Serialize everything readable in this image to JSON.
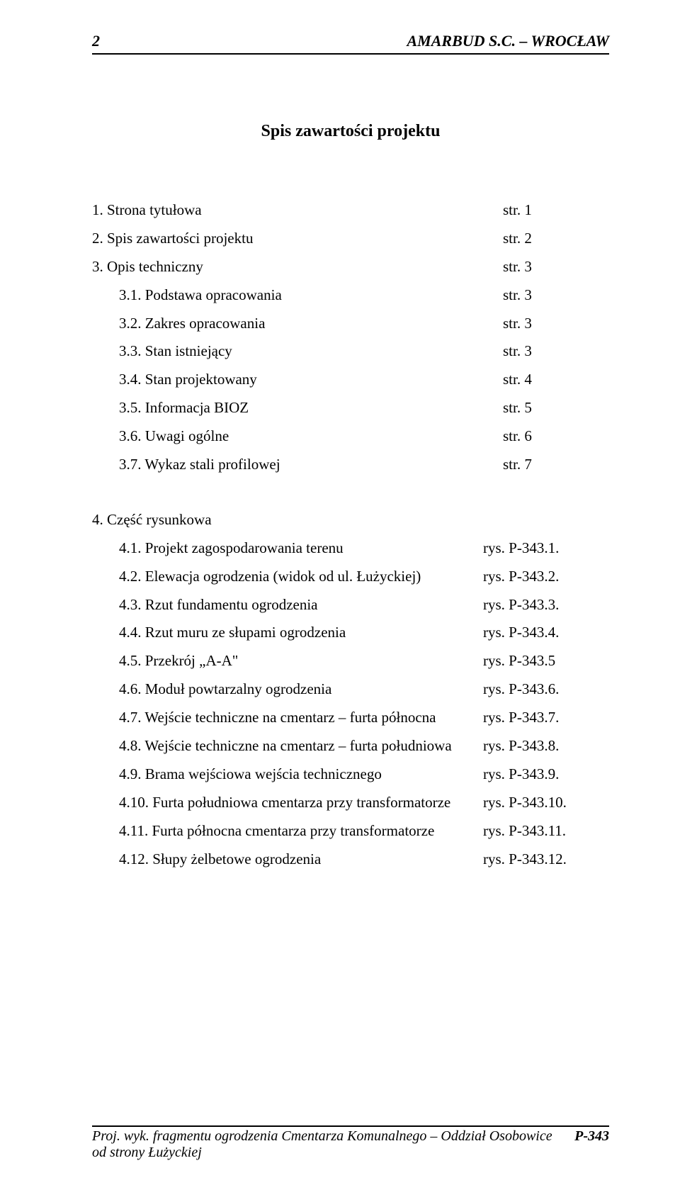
{
  "header": {
    "page_number": "2",
    "company": "AMARBUD S.C. – WROCŁAW"
  },
  "title": "Spis zawartości projektu",
  "section1": [
    {
      "label": "1. Strona tytułowa",
      "page": "str. 1"
    },
    {
      "label": "2. Spis zawartości projektu",
      "page": "str. 2"
    },
    {
      "label": "3. Opis techniczny",
      "page": "str. 3"
    }
  ],
  "section1_sub": [
    {
      "label": "3.1. Podstawa opracowania",
      "page": "str. 3"
    },
    {
      "label": "3.2. Zakres opracowania",
      "page": "str. 3"
    },
    {
      "label": "3.3. Stan istniejący",
      "page": "str. 3"
    },
    {
      "label": "3.4. Stan projektowany",
      "page": "str. 4"
    },
    {
      "label": "3.5. Informacja BIOZ",
      "page": "str. 5"
    },
    {
      "label": "3.6. Uwagi ogólne",
      "page": "str. 6"
    },
    {
      "label": "3.7. Wykaz stali profilowej",
      "page": "str. 7"
    }
  ],
  "section2_head": {
    "label": "4. Część rysunkowa",
    "page": ""
  },
  "section2": [
    {
      "label": "4.1. Projekt zagospodarowania terenu",
      "page": "rys. P-343.1."
    },
    {
      "label": "4.2. Elewacja ogrodzenia (widok od ul. Łużyckiej)",
      "page": "rys. P-343.2."
    },
    {
      "label": "4.3. Rzut fundamentu ogrodzenia",
      "page": "rys. P-343.3."
    },
    {
      "label": "4.4. Rzut muru ze słupami ogrodzenia",
      "page": "rys. P-343.4."
    },
    {
      "label": "4.5. Przekrój „A-A\"",
      "page": "rys. P-343.5"
    },
    {
      "label": "4.6. Moduł powtarzalny ogrodzenia",
      "page": "rys. P-343.6."
    },
    {
      "label": "4.7. Wejście techniczne na cmentarz – furta północna",
      "page": "rys. P-343.7."
    },
    {
      "label": "4.8. Wejście techniczne na cmentarz – furta południowa",
      "page": "rys. P-343.8."
    },
    {
      "label": "4.9. Brama wejściowa wejścia technicznego",
      "page": "rys. P-343.9."
    },
    {
      "label": "4.10. Furta południowa cmentarza przy transformatorze",
      "page": "rys. P-343.10."
    },
    {
      "label": "4.11. Furta północna cmentarza przy transformatorze",
      "page": "rys. P-343.11."
    },
    {
      "label": "4.12. Słupy żelbetowe ogrodzenia",
      "page": "rys. P-343.12."
    }
  ],
  "footer": {
    "text": "Proj. wyk. fragmentu ogrodzenia Cmentarza Komunalnego – Oddział Osobowice od strony Łużyckiej",
    "code": "P-343"
  }
}
